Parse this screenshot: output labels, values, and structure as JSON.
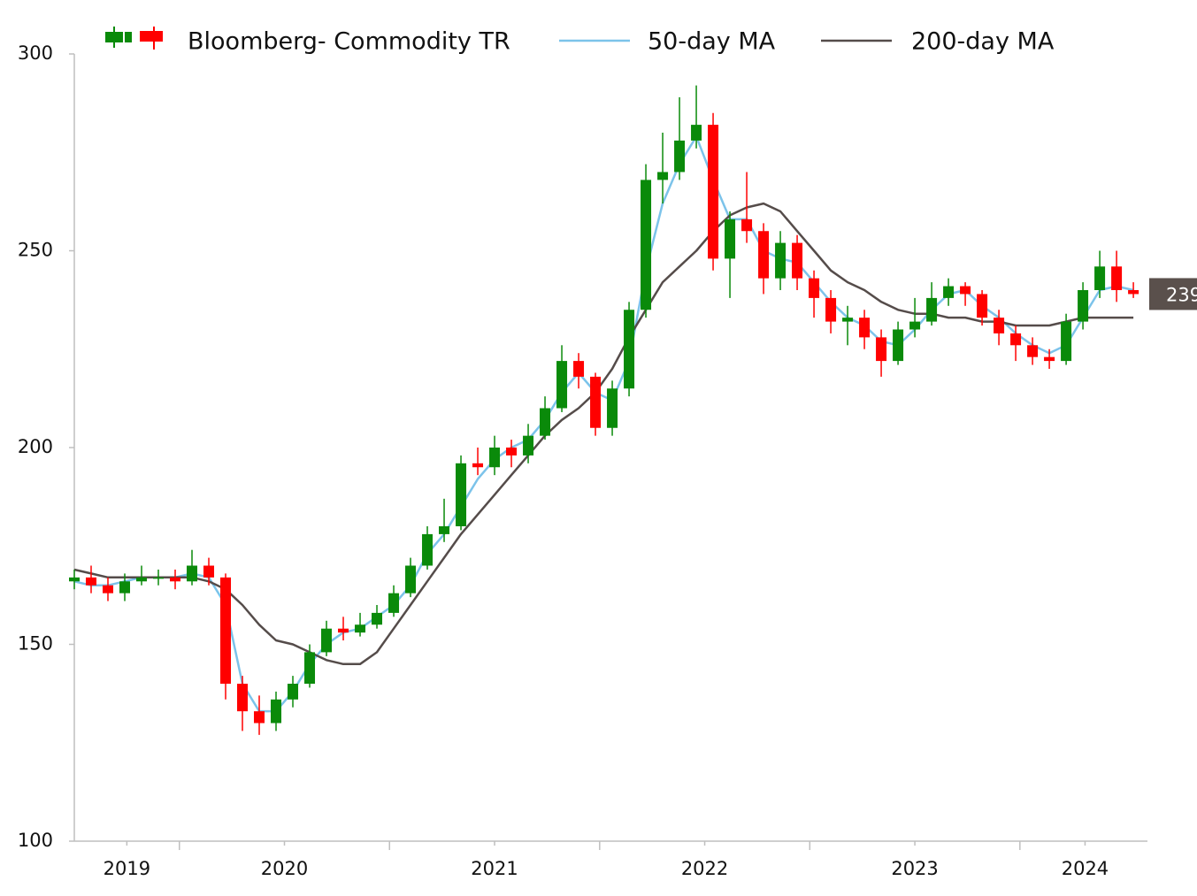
{
  "chart_data": {
    "type": "candlestick",
    "x": [
      2019.5,
      2019.58,
      2019.66,
      2019.74,
      2019.82,
      2019.9,
      2019.98,
      2020.06,
      2020.14,
      2020.22,
      2020.3,
      2020.38,
      2020.46,
      2020.54,
      2020.62,
      2020.7,
      2020.78,
      2020.86,
      2020.94,
      2021.02,
      2021.1,
      2021.18,
      2021.26,
      2021.34,
      2021.42,
      2021.5,
      2021.58,
      2021.66,
      2021.74,
      2021.82,
      2021.9,
      2021.98,
      2022.06,
      2022.14,
      2022.22,
      2022.3,
      2022.38,
      2022.46,
      2022.54,
      2022.62,
      2022.7,
      2022.78,
      2022.86,
      2022.94,
      2023.02,
      2023.1,
      2023.18,
      2023.26,
      2023.34,
      2023.42,
      2023.5,
      2023.58,
      2023.66,
      2023.74,
      2023.82,
      2023.9,
      2023.98,
      2024.06,
      2024.14,
      2024.22,
      2024.3,
      2024.38,
      2024.46,
      2024.54
    ],
    "candles": {
      "name": "Bloomberg- Commodity TR",
      "up_color": "#0a8a0a",
      "down_color": "#ff0000",
      "open": [
        166,
        167,
        165,
        163,
        166,
        167,
        167,
        166,
        170,
        167,
        140,
        133,
        130,
        136,
        140,
        148,
        154,
        153,
        155,
        158,
        163,
        170,
        178,
        180,
        196,
        195,
        200,
        198,
        203,
        210,
        222,
        218,
        205,
        215,
        235,
        268,
        270,
        278,
        282,
        248,
        258,
        255,
        243,
        252,
        243,
        238,
        232,
        233,
        228,
        222,
        230,
        232,
        238,
        241,
        239,
        233,
        229,
        226,
        223,
        222,
        232,
        240,
        246,
        240
      ],
      "high": [
        169,
        170,
        167,
        168,
        170,
        169,
        169,
        174,
        172,
        168,
        142,
        137,
        138,
        142,
        150,
        156,
        157,
        158,
        160,
        165,
        172,
        180,
        187,
        198,
        200,
        203,
        202,
        206,
        213,
        226,
        224,
        219,
        217,
        237,
        272,
        280,
        289,
        292,
        285,
        260,
        270,
        257,
        255,
        254,
        245,
        240,
        236,
        235,
        230,
        232,
        238,
        242,
        243,
        242,
        240,
        235,
        231,
        228,
        225,
        234,
        242,
        250,
        250,
        242
      ],
      "low": [
        164,
        163,
        161,
        161,
        165,
        165,
        164,
        165,
        165,
        136,
        128,
        127,
        128,
        134,
        139,
        147,
        151,
        152,
        154,
        157,
        162,
        169,
        176,
        179,
        193,
        193,
        195,
        196,
        202,
        209,
        215,
        203,
        203,
        213,
        233,
        262,
        268,
        276,
        245,
        238,
        252,
        239,
        240,
        240,
        233,
        229,
        226,
        225,
        218,
        221,
        228,
        231,
        236,
        236,
        231,
        226,
        222,
        221,
        220,
        221,
        230,
        238,
        237,
        238
      ],
      "close": [
        167,
        165,
        163,
        166,
        167,
        167,
        166,
        170,
        167,
        140,
        133,
        130,
        136,
        140,
        148,
        154,
        153,
        155,
        158,
        163,
        170,
        178,
        180,
        196,
        195,
        200,
        198,
        203,
        210,
        222,
        218,
        205,
        215,
        235,
        268,
        270,
        278,
        282,
        248,
        258,
        255,
        243,
        252,
        243,
        238,
        232,
        233,
        228,
        222,
        230,
        232,
        238,
        241,
        239,
        233,
        229,
        226,
        223,
        222,
        232,
        240,
        246,
        240,
        239
      ]
    },
    "series": [
      {
        "name": "50-day MA",
        "color": "#7cc3ea",
        "values": [
          166,
          165,
          165,
          166,
          167,
          167,
          167,
          168,
          167,
          160,
          140,
          133,
          133,
          138,
          145,
          150,
          153,
          154,
          157,
          160,
          165,
          173,
          178,
          185,
          192,
          197,
          200,
          202,
          207,
          214,
          219,
          214,
          212,
          222,
          245,
          262,
          272,
          279,
          268,
          258,
          258,
          250,
          248,
          247,
          242,
          237,
          233,
          231,
          227,
          226,
          230,
          235,
          239,
          240,
          236,
          233,
          229,
          226,
          224,
          226,
          233,
          240,
          241,
          240
        ]
      },
      {
        "name": "200-day MA",
        "color": "#554c4a",
        "values": [
          169,
          168,
          167,
          167,
          167,
          167,
          167,
          167,
          166,
          164,
          160,
          155,
          151,
          150,
          148,
          146,
          145,
          145,
          148,
          154,
          160,
          166,
          172,
          178,
          183,
          188,
          193,
          198,
          203,
          207,
          210,
          214,
          220,
          228,
          235,
          242,
          246,
          250,
          255,
          259,
          261,
          262,
          260,
          255,
          250,
          245,
          242,
          240,
          237,
          235,
          234,
          234,
          233,
          233,
          232,
          232,
          231,
          231,
          231,
          232,
          233,
          233,
          233,
          233
        ]
      }
    ],
    "xlim": [
      2019.5,
      2024.607
    ],
    "xticks": [
      {
        "value": 2019.75,
        "label": "2019"
      },
      {
        "value": 2020.5,
        "label": "2020"
      },
      {
        "value": 2021.5,
        "label": "2021"
      },
      {
        "value": 2022.5,
        "label": "2022"
      },
      {
        "value": 2023.5,
        "label": "2023"
      },
      {
        "value": 2024.31,
        "label": "2024"
      }
    ],
    "year_ticks": [
      2020,
      2021,
      2022,
      2023,
      2024
    ],
    "ylim": [
      100,
      300
    ],
    "yticks": [
      100,
      150,
      200,
      250,
      300
    ],
    "price_tag": 239,
    "price_tag_color": "#5a504c"
  }
}
